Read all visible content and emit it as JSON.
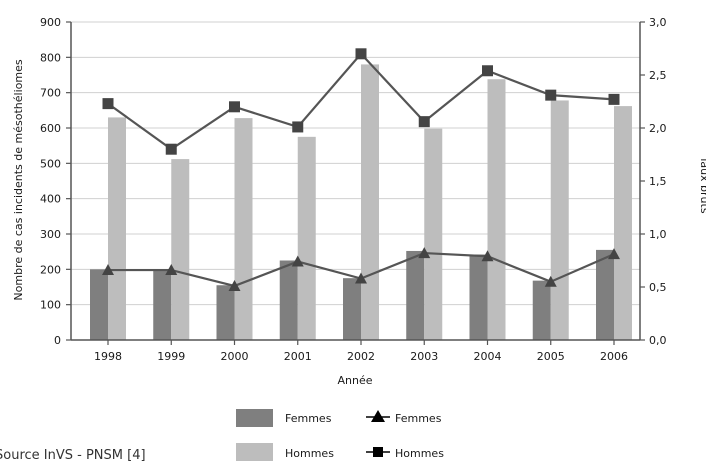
{
  "chart_data": {
    "type": "bar",
    "categories": [
      "1998",
      "1999",
      "2000",
      "2001",
      "2002",
      "2003",
      "2004",
      "2005",
      "2006"
    ],
    "xlabel": "Année",
    "ylabel_left": "Nombre de cas incidents de mésothéliomes",
    "ylabel_right": "Taux bruts",
    "ylim_left": [
      0,
      900
    ],
    "ylim_right": [
      0.0,
      3.0
    ],
    "y_ticks_left": [
      "0",
      "100",
      "200",
      "300",
      "400",
      "500",
      "600",
      "700",
      "800",
      "900"
    ],
    "y_ticks_right": [
      "0,0",
      "0,5",
      "1,0",
      "1,5",
      "2,0",
      "2,5",
      "3,0"
    ],
    "grid": "horizontal",
    "legend_position": "bottom",
    "bar_series": [
      {
        "name": "Femmes",
        "color": "#7f7f7f",
        "values": [
          200,
          200,
          155,
          225,
          175,
          252,
          242,
          168,
          255
        ]
      },
      {
        "name": "Hommes",
        "color": "#bdbdbd",
        "values": [
          630,
          512,
          628,
          575,
          780,
          598,
          738,
          678,
          662
        ]
      }
    ],
    "line_series": [
      {
        "name": "Femmes",
        "marker": "triangle",
        "color": "#555555",
        "values": [
          0.66,
          0.66,
          0.51,
          0.74,
          0.58,
          0.82,
          0.79,
          0.55,
          0.81
        ]
      },
      {
        "name": "Hommes",
        "marker": "square",
        "color": "#555555",
        "values": [
          2.23,
          1.8,
          2.2,
          2.01,
          2.7,
          2.06,
          2.54,
          2.31,
          2.27
        ]
      }
    ],
    "source": "Source InVS - PNSM [4]"
  }
}
